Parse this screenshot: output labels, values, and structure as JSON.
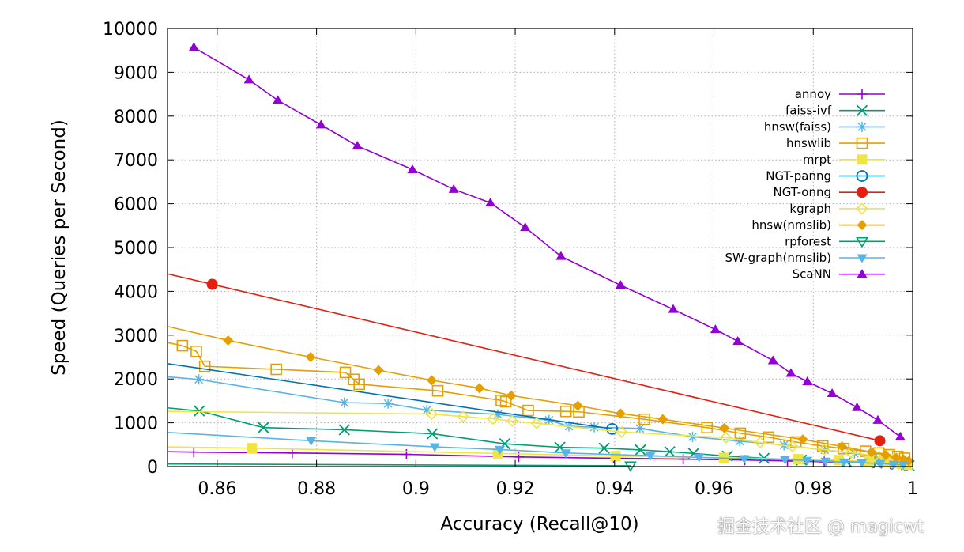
{
  "watermark": "掘金技术社区 @ magicwt",
  "chart_data": {
    "type": "line",
    "title": "",
    "xlabel": "Accuracy (Recall@10)",
    "ylabel": "Speed (Queries per Second)",
    "xlim": [
      0.85,
      1.0
    ],
    "ylim": [
      0,
      10000
    ],
    "xticks": [
      0.86,
      0.88,
      0.9,
      0.92,
      0.94,
      0.96,
      0.98,
      1
    ],
    "xtick_labels": [
      "0.86",
      "0.88",
      "0.9",
      "0.92",
      "0.94",
      "0.96",
      "0.98",
      "1"
    ],
    "yticks": [
      0,
      1000,
      2000,
      3000,
      4000,
      5000,
      6000,
      7000,
      8000,
      9000,
      10000
    ],
    "ytick_labels": [
      "0",
      "1000",
      "2000",
      "3000",
      "4000",
      "5000",
      "6000",
      "7000",
      "8000",
      "9000",
      "10000"
    ],
    "grid": true,
    "legend_position": "top-right",
    "series": [
      {
        "name": "annoy",
        "color": "#9400d3",
        "marker": "plus",
        "x": [
          0.85,
          0.8553,
          0.8751,
          0.8981,
          0.9207,
          0.9398,
          0.9538,
          0.9662,
          0.9748,
          0.9822,
          0.9873,
          0.9922,
          0.9955,
          0.9978,
          0.9989
        ],
        "y": [
          340,
          330,
          310,
          280,
          220,
          190,
          170,
          150,
          130,
          110,
          95,
          80,
          60,
          40,
          30
        ]
      },
      {
        "name": "faiss-ivf",
        "color": "#009e73",
        "marker": "x",
        "x": [
          0.85,
          0.8564,
          0.8693,
          0.8856,
          0.9033,
          0.9179,
          0.929,
          0.9379,
          0.9452,
          0.9511,
          0.9559,
          0.9627,
          0.9701,
          0.9776,
          0.9867,
          0.9928,
          0.9968,
          0.9993
        ],
        "y": [
          1340,
          1270,
          890,
          840,
          750,
          520,
          440,
          420,
          380,
          340,
          300,
          240,
          190,
          150,
          110,
          80,
          50,
          20
        ]
      },
      {
        "name": "hnsw(faiss)",
        "color": "#56b4e9",
        "marker": "star",
        "x": [
          0.85,
          0.8563,
          0.8856,
          0.8944,
          0.9022,
          0.9165,
          0.9268,
          0.9308,
          0.9359,
          0.9451,
          0.9557,
          0.9652,
          0.9741,
          0.9823,
          0.9883,
          0.9924,
          0.9956,
          0.9974,
          0.9987
        ],
        "y": [
          2050,
          1990,
          1460,
          1440,
          1290,
          1190,
          1060,
          920,
          900,
          870,
          680,
          580,
          490,
          380,
          300,
          230,
          170,
          130,
          100
        ]
      },
      {
        "name": "hnswlib",
        "color": "#e69f00",
        "marker": "square-open",
        "x": [
          0.85,
          0.853,
          0.8558,
          0.8575,
          0.8719,
          0.8858,
          0.8875,
          0.8886,
          0.9044,
          0.9172,
          0.9181,
          0.9226,
          0.9302,
          0.9328,
          0.946,
          0.9586,
          0.9653,
          0.971,
          0.9765,
          0.9819,
          0.9861,
          0.9905,
          0.9932,
          0.9953,
          0.997,
          0.9984
        ],
        "y": [
          2830,
          2760,
          2630,
          2290,
          2220,
          2150,
          1990,
          1880,
          1730,
          1510,
          1480,
          1280,
          1260,
          1250,
          1080,
          890,
          760,
          670,
          560,
          470,
          410,
          350,
          310,
          270,
          230,
          190
        ]
      },
      {
        "name": "mrpt",
        "color": "#f0e442",
        "marker": "square",
        "x": [
          0.85,
          0.867,
          0.9165,
          0.9402,
          0.962,
          0.977,
          0.9851,
          0.9912,
          0.9944,
          0.9965,
          0.9979,
          0.9989
        ],
        "y": [
          450,
          420,
          300,
          240,
          200,
          170,
          150,
          120,
          100,
          80,
          60,
          40
        ]
      },
      {
        "name": "NGT-panng",
        "color": "#0072b2",
        "marker": "circle-open",
        "x": [
          0.85,
          0.9395
        ],
        "y": [
          2350,
          860
        ]
      },
      {
        "name": "NGT-onng",
        "color": "#e51e10",
        "marker": "circle",
        "x": [
          0.85,
          0.859,
          0.9934
        ],
        "y": [
          4400,
          4160,
          590
        ]
      },
      {
        "name": "kgraph",
        "color": "#f0e442",
        "marker": "diamond-open",
        "x": [
          0.85,
          0.9032,
          0.9095,
          0.9155,
          0.9194,
          0.9243,
          0.9414,
          0.9624,
          0.9693,
          0.9758,
          0.9822,
          0.9875,
          0.9924,
          0.9961,
          0.9983
        ],
        "y": [
          1260,
          1200,
          1140,
          1090,
          1040,
          990,
          790,
          660,
          550,
          460,
          390,
          320,
          250,
          180,
          130
        ]
      },
      {
        "name": "hnsw(nmslib)",
        "color": "#e69f00",
        "marker": "diamond",
        "x": [
          0.85,
          0.8622,
          0.8788,
          0.8925,
          0.9032,
          0.9128,
          0.9192,
          0.9326,
          0.9412,
          0.9497,
          0.9621,
          0.9779,
          0.9858,
          0.9917,
          0.9946,
          0.9967,
          0.9982,
          0.9992
        ],
        "y": [
          3200,
          2880,
          2500,
          2200,
          1970,
          1790,
          1620,
          1390,
          1210,
          1080,
          880,
          620,
          460,
          330,
          260,
          200,
          160,
          130
        ]
      },
      {
        "name": "rpforest",
        "color": "#009e73",
        "marker": "triangle-down-open",
        "x": [
          0.85,
          0.9432
        ],
        "y": [
          60,
          20
        ]
      },
      {
        "name": "SW-graph(nmslib)",
        "color": "#56b4e9",
        "marker": "triangle-down",
        "x": [
          0.85,
          0.8789,
          0.9038,
          0.9169,
          0.9302,
          0.9472,
          0.957,
          0.9661,
          0.9743,
          0.9788,
          0.9825,
          0.9862,
          0.9898,
          0.9935,
          0.9962,
          0.9981
        ],
        "y": [
          780,
          590,
          450,
          390,
          310,
          250,
          210,
          180,
          160,
          140,
          120,
          100,
          90,
          70,
          50,
          40
        ]
      },
      {
        "name": "ScaNN",
        "color": "#9400d3",
        "marker": "triangle",
        "x": [
          0.8553,
          0.8664,
          0.8722,
          0.8809,
          0.8882,
          0.8993,
          0.9076,
          0.915,
          0.922,
          0.9292,
          0.9412,
          0.9518,
          0.9603,
          0.9648,
          0.9719,
          0.9755,
          0.9788,
          0.9838,
          0.9888,
          0.993,
          0.9975
        ],
        "y": [
          9570,
          8830,
          8360,
          7800,
          7320,
          6780,
          6330,
          6020,
          5460,
          4800,
          4140,
          3590,
          3130,
          2860,
          2420,
          2130,
          1940,
          1670,
          1350,
          1060,
          680
        ]
      }
    ]
  }
}
